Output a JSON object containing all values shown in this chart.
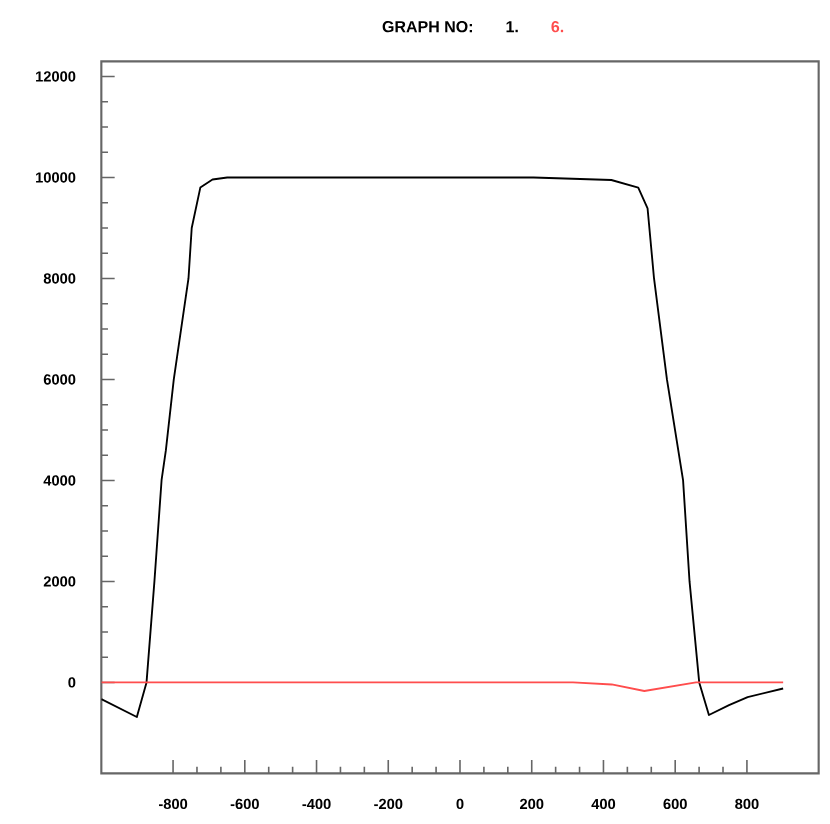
{
  "chart_data": {
    "type": "line",
    "title": "GRAPH NO:",
    "legend": "top",
    "xlim": [
      -1000,
      1000
    ],
    "ylim": [
      -1800,
      12300
    ],
    "xticks": [
      -800,
      -600,
      -400,
      -200,
      0,
      200,
      400,
      600,
      800
    ],
    "yticks": [
      0,
      2000,
      4000,
      6000,
      8000,
      10000,
      12000
    ],
    "grid": false,
    "marker": "none",
    "line_style": "solid",
    "series": [
      {
        "name": "1.",
        "color": "#000000",
        "x": [
          -1000,
          -901,
          -874,
          -852,
          -832,
          -820,
          -798,
          -757,
          -748,
          -724,
          -690,
          -649,
          -400,
          0,
          205,
          422,
          497,
          523,
          541,
          577,
          622,
          640,
          667,
          694,
          750,
          802,
          901
        ],
        "values": [
          -330,
          -685,
          0,
          2000,
          4010,
          4600,
          6000,
          8000,
          9000,
          9800,
          9960,
          10000,
          10000,
          10000,
          10000,
          9950,
          9800,
          9386,
          8000,
          6000,
          4000,
          2000,
          0,
          -645,
          -450,
          -290,
          -120
        ]
      },
      {
        "name": "6.",
        "color": "#ff4d4d",
        "x": [
          -1000,
          0,
          315,
          423,
          514,
          658,
          901
        ],
        "values": [
          0,
          0,
          0,
          -40,
          -170,
          0,
          0
        ]
      }
    ]
  }
}
